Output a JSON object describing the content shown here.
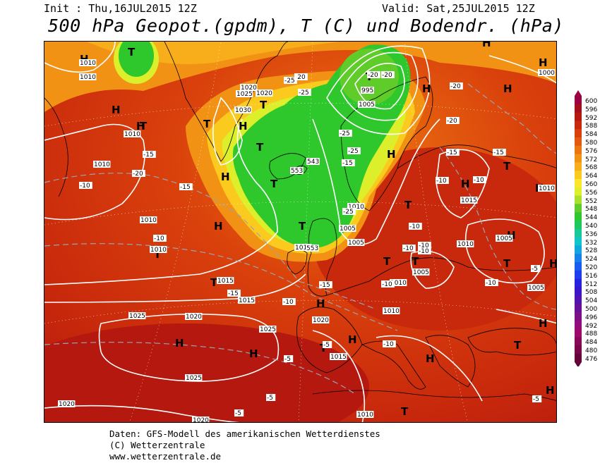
{
  "header": {
    "init": "Init : Thu,16JUL2015 12Z",
    "valid": "Valid: Sat,25JUL2015 12Z",
    "title": "500 hPa Geopot.(gpdm), T (C) und Bodendr. (hPa)"
  },
  "footer": {
    "line1": "Daten: GFS-Modell des amerikanischen Wetterdienstes",
    "line2": "(C) Wetterzentrale",
    "line3": "www.wetterzentrale.de"
  },
  "legend": {
    "unit": "gpdm",
    "ticks": [
      "600",
      "596",
      "592",
      "588",
      "584",
      "580",
      "576",
      "572",
      "568",
      "564",
      "560",
      "556",
      "552",
      "548",
      "544",
      "540",
      "536",
      "532",
      "528",
      "524",
      "520",
      "516",
      "512",
      "508",
      "504",
      "500",
      "496",
      "492",
      "488",
      "484",
      "480",
      "476"
    ],
    "colors": [
      "#9b0045",
      "#a40d1a",
      "#b5180f",
      "#c8290c",
      "#d9400c",
      "#e35a0e",
      "#ec7510",
      "#f29215",
      "#f7ae1a",
      "#fbca1f",
      "#fde62a",
      "#dcef2a",
      "#a8e02a",
      "#5fcc29",
      "#2ec82c",
      "#1ec85a",
      "#17c898",
      "#11c4c8",
      "#12a6e0",
      "#1680ec",
      "#1a5cf0",
      "#1c3ef0",
      "#2622e0",
      "#3a16c8",
      "#5012b0",
      "#661098",
      "#7c0e86",
      "#920c7c",
      "#9c0a6a",
      "#8a0858",
      "#780648",
      "#640438"
    ]
  },
  "map_labels": {
    "highs": [
      "H",
      "H",
      "H",
      "H",
      "H",
      "H",
      "H",
      "H",
      "H",
      "H",
      "H",
      "H",
      "H",
      "H",
      "H",
      "H",
      "H",
      "H",
      "H",
      "H",
      "H",
      "H"
    ],
    "lows": [
      "T",
      "T",
      "T",
      "T",
      "T",
      "T",
      "T",
      "T",
      "T",
      "T",
      "T",
      "T",
      "T",
      "T",
      "T",
      "T",
      "T",
      "T"
    ],
    "pressure": [
      "1010",
      "1010",
      "1020",
      "1025",
      "1020",
      "1030",
      "1010",
      "1010",
      "1010",
      "1000",
      "1005",
      "995",
      "1010",
      "1015",
      "1010",
      "1005",
      "1005",
      "1010",
      "1005",
      "1005",
      "1010",
      "1010",
      "1005",
      "1020",
      "1015",
      "1015",
      "1020",
      "1025",
      "1025",
      "1025",
      "1020",
      "1020",
      "1010",
      "1015",
      "1010",
      "1010"
    ],
    "temperature": [
      "-20",
      "-25",
      "-20",
      "-20",
      "-25",
      "-20",
      "-20",
      "-25",
      "-25",
      "-15",
      "-15",
      "-20",
      "-15",
      "-15",
      "-10",
      "-10",
      "-10",
      "-15",
      "-25",
      "-10",
      "-10",
      "-10",
      "-10",
      "-15",
      "-10",
      "-10",
      "-10",
      "-5",
      "-10",
      "-5",
      "-5",
      "-5",
      "-5",
      "-15",
      "-10",
      "-5"
    ],
    "geopotential": [
      "543",
      "553",
      "553"
    ]
  }
}
